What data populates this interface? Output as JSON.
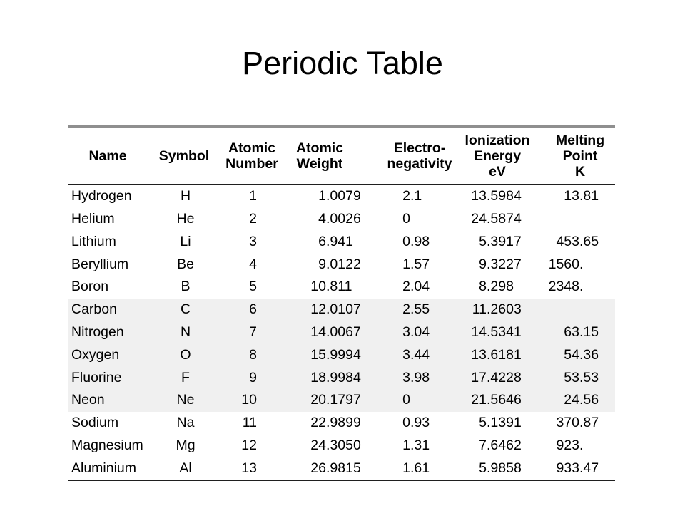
{
  "slide": {
    "title": "Periodic Table"
  },
  "colors": {
    "bg": "#ffffff",
    "text": "#000000",
    "topline": "#8f8f8f",
    "rule": "#1f1f1f",
    "band": "#f0f0f0"
  },
  "table": {
    "headers": [
      {
        "id": "name",
        "text": "Name"
      },
      {
        "id": "symbol",
        "text": "Symbol"
      },
      {
        "id": "atomic-number",
        "text": "Atomic\nNumber"
      },
      {
        "id": "atomic-weight",
        "text": "Atomic\nWeight"
      },
      {
        "id": "electronegativity",
        "text": "Electro-\nnegativity"
      },
      {
        "id": "ionization-energy",
        "text": "Ionization\nEnergy\neV"
      },
      {
        "id": "melting-point",
        "text": "Melting\nPoint\nK"
      }
    ],
    "rows": [
      {
        "name": "Hydrogen",
        "symbol": "H",
        "number": "1",
        "weight": "1.0079",
        "electronegativity": "2.1",
        "ionization": "13.5984",
        "melting": "13.81",
        "shaded": false
      },
      {
        "name": "Helium",
        "symbol": "He",
        "number": "2",
        "weight": "4.0026",
        "electronegativity": "0",
        "ionization": "24.5874",
        "melting": "",
        "shaded": false
      },
      {
        "name": "Lithium",
        "symbol": "Li",
        "number": "3",
        "weight": "6.941",
        "electronegativity": "0.98",
        "ionization": "5.3917",
        "melting": "453.65",
        "shaded": false
      },
      {
        "name": "Beryllium",
        "symbol": "Be",
        "number": "4",
        "weight": "9.0122",
        "electronegativity": "1.57",
        "ionization": "9.3227",
        "melting": "1560.",
        "shaded": false
      },
      {
        "name": "Boron",
        "symbol": "B",
        "number": "5",
        "weight": "10.811",
        "electronegativity": "2.04",
        "ionization": "8.298",
        "melting": "2348.",
        "shaded": false
      },
      {
        "name": "Carbon",
        "symbol": "C",
        "number": "6",
        "weight": "12.0107",
        "electronegativity": "2.55",
        "ionization": "11.2603",
        "melting": "",
        "shaded": true
      },
      {
        "name": "Nitrogen",
        "symbol": "N",
        "number": "7",
        "weight": "14.0067",
        "electronegativity": "3.04",
        "ionization": "14.5341",
        "melting": "63.15",
        "shaded": true
      },
      {
        "name": "Oxygen",
        "symbol": "O",
        "number": "8",
        "weight": "15.9994",
        "electronegativity": "3.44",
        "ionization": "13.6181",
        "melting": "54.36",
        "shaded": true
      },
      {
        "name": "Fluorine",
        "symbol": "F",
        "number": "9",
        "weight": "18.9984",
        "electronegativity": "3.98",
        "ionization": "17.4228",
        "melting": "53.53",
        "shaded": true
      },
      {
        "name": "Neon",
        "symbol": "Ne",
        "number": "10",
        "weight": "20.1797",
        "electronegativity": "0",
        "ionization": "21.5646",
        "melting": "24.56",
        "shaded": true
      },
      {
        "name": "Sodium",
        "symbol": "Na",
        "number": "11",
        "weight": "22.9899",
        "electronegativity": "0.93",
        "ionization": "5.1391",
        "melting": "370.87",
        "shaded": false
      },
      {
        "name": "Magnesium",
        "symbol": "Mg",
        "number": "12",
        "weight": "24.3050",
        "electronegativity": "1.31",
        "ionization": "7.6462",
        "melting": "923.",
        "shaded": false
      },
      {
        "name": "Aluminium",
        "symbol": "Al",
        "number": "13",
        "weight": "26.9815",
        "electronegativity": "1.61",
        "ionization": "5.9858",
        "melting": "933.47",
        "shaded": false
      }
    ]
  }
}
